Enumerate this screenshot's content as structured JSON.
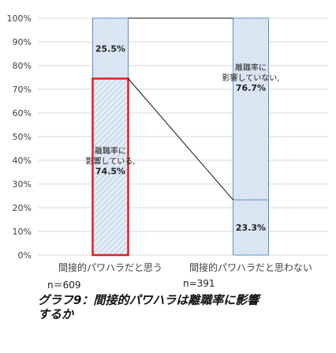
{
  "chart_data": {
    "type": "bar",
    "stacked": true,
    "categories": [
      "間接的パワハラだと思う",
      "間接的パワハラだと思わない"
    ],
    "series": [
      {
        "name": "",
        "values": [
          74.5,
          23.3
        ],
        "labels": [
          [
            "離職率に",
            "影響している,",
            "74.5%"
          ],
          [
            "23.3%"
          ]
        ]
      },
      {
        "name": "",
        "values": [
          25.5,
          76.7
        ],
        "labels": [
          [
            "25.5%"
          ],
          [
            "離職率に",
            "影響していない,",
            "76.7%"
          ]
        ]
      }
    ],
    "ylim": [
      0,
      100
    ],
    "yticks": [
      "0%",
      "10%",
      "20%",
      "30%",
      "40%",
      "50%",
      "60%",
      "70%",
      "80%",
      "90%",
      "100%"
    ],
    "grid": true,
    "colors": {
      "highlight_border": "#e02020",
      "bar_border": "#5b8fc7",
      "fill": "#dde9f5",
      "hatch": "#9bb8d8",
      "grid": "#d9d9d9",
      "axis_text": "#404040"
    }
  },
  "notes": {
    "n_left": "n＝609",
    "n_right": "n=391"
  },
  "caption": {
    "line1": "グラフ9：間接的パワハラは離職率に影響",
    "line2": "するか"
  }
}
